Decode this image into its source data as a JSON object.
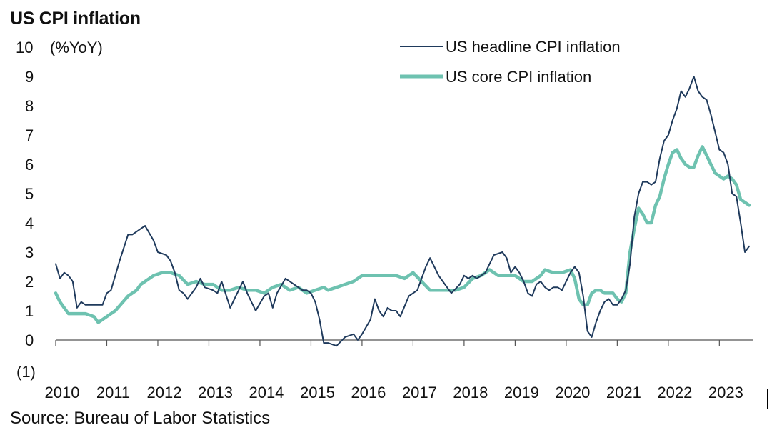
{
  "chart_data": {
    "type": "line",
    "title": "US CPI inflation",
    "ylabel": "(%YoY)",
    "source": "Source: Bureau of Labor Statistics",
    "ylim": [
      -1,
      10
    ],
    "y_ticks": [
      {
        "value": 10,
        "label": "10"
      },
      {
        "value": 9,
        "label": "9"
      },
      {
        "value": 8,
        "label": "8"
      },
      {
        "value": 7,
        "label": "7"
      },
      {
        "value": 6,
        "label": "6"
      },
      {
        "value": 5,
        "label": "5"
      },
      {
        "value": 4,
        "label": "4"
      },
      {
        "value": 3,
        "label": "3"
      },
      {
        "value": 2,
        "label": "2"
      },
      {
        "value": 1,
        "label": "1"
      },
      {
        "value": 0,
        "label": "0"
      },
      {
        "value": -1,
        "label": "(1)"
      }
    ],
    "x_range": [
      "2010-01",
      "2023-09"
    ],
    "x_ticks": [
      "2010",
      "2011",
      "2012",
      "2013",
      "2014",
      "2015",
      "2016",
      "2017",
      "2018",
      "2019",
      "2020",
      "2021",
      "2022",
      "2023"
    ],
    "legend_position": "top-right",
    "grid": false,
    "series": [
      {
        "name": "US headline CPI inflation",
        "color": "#1f3a5c",
        "points": [
          [
            "2010-01",
            2.6
          ],
          [
            "2010-02",
            2.1
          ],
          [
            "2010-03",
            2.3
          ],
          [
            "2010-04",
            2.2
          ],
          [
            "2010-05",
            2.0
          ],
          [
            "2010-06",
            1.1
          ],
          [
            "2010-07",
            1.3
          ],
          [
            "2010-08",
            1.2
          ],
          [
            "2010-10",
            1.2
          ],
          [
            "2010-12",
            1.2
          ],
          [
            "2011-01",
            1.6
          ],
          [
            "2011-02",
            1.7
          ],
          [
            "2011-04",
            2.7
          ],
          [
            "2011-06",
            3.6
          ],
          [
            "2011-07",
            3.6
          ],
          [
            "2011-09",
            3.8
          ],
          [
            "2011-10",
            3.9
          ],
          [
            "2011-12",
            3.4
          ],
          [
            "2012-01",
            3.0
          ],
          [
            "2012-03",
            2.9
          ],
          [
            "2012-04",
            2.7
          ],
          [
            "2012-05",
            2.3
          ],
          [
            "2012-06",
            1.7
          ],
          [
            "2012-07",
            1.6
          ],
          [
            "2012-08",
            1.4
          ],
          [
            "2012-10",
            1.8
          ],
          [
            "2012-11",
            2.1
          ],
          [
            "2012-12",
            1.8
          ],
          [
            "2013-02",
            1.7
          ],
          [
            "2013-03",
            1.6
          ],
          [
            "2013-04",
            2.0
          ],
          [
            "2013-06",
            1.1
          ],
          [
            "2013-07",
            1.4
          ],
          [
            "2013-09",
            2.0
          ],
          [
            "2013-10",
            1.6
          ],
          [
            "2013-12",
            1.0
          ],
          [
            "2014-02",
            1.5
          ],
          [
            "2014-03",
            1.6
          ],
          [
            "2014-04",
            1.1
          ],
          [
            "2014-05",
            1.6
          ],
          [
            "2014-07",
            2.1
          ],
          [
            "2014-08",
            2.0
          ],
          [
            "2014-09",
            1.9
          ],
          [
            "2014-11",
            1.7
          ],
          [
            "2014-12",
            1.7
          ],
          [
            "2015-01",
            1.6
          ],
          [
            "2015-02",
            1.3
          ],
          [
            "2015-03",
            0.7
          ],
          [
            "2015-04",
            -0.1
          ],
          [
            "2015-05",
            -0.1
          ],
          [
            "2015-07",
            -0.2
          ],
          [
            "2015-09",
            0.1
          ],
          [
            "2015-11",
            0.2
          ],
          [
            "2015-12",
            -0.0
          ],
          [
            "2016-01",
            0.2
          ],
          [
            "2016-03",
            0.7
          ],
          [
            "2016-04",
            1.4
          ],
          [
            "2016-05",
            1.0
          ],
          [
            "2016-06",
            0.8
          ],
          [
            "2016-07",
            1.1
          ],
          [
            "2016-08",
            1.0
          ],
          [
            "2016-09",
            1.0
          ],
          [
            "2016-10",
            0.8
          ],
          [
            "2016-12",
            1.5
          ],
          [
            "2017-01",
            1.6
          ],
          [
            "2017-02",
            1.7
          ],
          [
            "2017-04",
            2.5
          ],
          [
            "2017-05",
            2.8
          ],
          [
            "2017-07",
            2.2
          ],
          [
            "2017-08",
            2.0
          ],
          [
            "2017-10",
            1.6
          ],
          [
            "2017-12",
            1.9
          ],
          [
            "2018-01",
            2.2
          ],
          [
            "2018-02",
            2.1
          ],
          [
            "2018-03",
            2.2
          ],
          [
            "2018-04",
            2.1
          ],
          [
            "2018-06",
            2.3
          ],
          [
            "2018-08",
            2.9
          ],
          [
            "2018-10",
            3.0
          ],
          [
            "2018-11",
            2.8
          ],
          [
            "2018-12",
            2.3
          ],
          [
            "2019-01",
            2.5
          ],
          [
            "2019-02",
            2.3
          ],
          [
            "2019-03",
            2.0
          ],
          [
            "2019-04",
            1.6
          ],
          [
            "2019-05",
            1.5
          ],
          [
            "2019-06",
            1.9
          ],
          [
            "2019-07",
            2.0
          ],
          [
            "2019-08",
            1.8
          ],
          [
            "2019-09",
            1.7
          ],
          [
            "2019-10",
            1.8
          ],
          [
            "2019-11",
            1.8
          ],
          [
            "2019-12",
            1.7
          ],
          [
            "2020-02",
            2.3
          ],
          [
            "2020-03",
            2.5
          ],
          [
            "2020-04",
            2.3
          ],
          [
            "2020-05",
            1.5
          ],
          [
            "2020-06",
            0.3
          ],
          [
            "2020-07",
            0.1
          ],
          [
            "2020-08",
            0.6
          ],
          [
            "2020-09",
            1.0
          ],
          [
            "2020-10",
            1.3
          ],
          [
            "2020-11",
            1.4
          ],
          [
            "2020-12",
            1.2
          ],
          [
            "2021-01",
            1.2
          ],
          [
            "2021-02",
            1.4
          ],
          [
            "2021-03",
            1.7
          ],
          [
            "2021-04",
            2.6
          ],
          [
            "2021-05",
            4.2
          ],
          [
            "2021-06",
            5.0
          ],
          [
            "2021-07",
            5.4
          ],
          [
            "2021-08",
            5.4
          ],
          [
            "2021-09",
            5.3
          ],
          [
            "2021-10",
            5.4
          ],
          [
            "2021-11",
            6.2
          ],
          [
            "2021-12",
            6.8
          ],
          [
            "2022-01",
            7.0
          ],
          [
            "2022-02",
            7.5
          ],
          [
            "2022-03",
            7.9
          ],
          [
            "2022-04",
            8.5
          ],
          [
            "2022-05",
            8.3
          ],
          [
            "2022-06",
            8.6
          ],
          [
            "2022-07",
            9.0
          ],
          [
            "2022-08",
            8.5
          ],
          [
            "2022-09",
            8.3
          ],
          [
            "2022-10",
            8.2
          ],
          [
            "2022-11",
            7.7
          ],
          [
            "2022-12",
            7.1
          ],
          [
            "2023-01",
            6.5
          ],
          [
            "2023-02",
            6.4
          ],
          [
            "2023-03",
            6.0
          ],
          [
            "2023-04",
            5.0
          ],
          [
            "2023-05",
            4.9
          ],
          [
            "2023-06",
            4.0
          ],
          [
            "2023-07",
            3.0
          ],
          [
            "2023-08",
            3.2
          ]
        ]
      },
      {
        "name": "US core CPI inflation",
        "color": "#6ec2b0",
        "points": [
          [
            "2010-01",
            1.6
          ],
          [
            "2010-02",
            1.3
          ],
          [
            "2010-03",
            1.1
          ],
          [
            "2010-04",
            0.9
          ],
          [
            "2010-06",
            0.9
          ],
          [
            "2010-08",
            0.9
          ],
          [
            "2010-10",
            0.8
          ],
          [
            "2010-11",
            0.6
          ],
          [
            "2011-01",
            0.8
          ],
          [
            "2011-03",
            1.0
          ],
          [
            "2011-06",
            1.5
          ],
          [
            "2011-08",
            1.7
          ],
          [
            "2011-09",
            1.9
          ],
          [
            "2011-10",
            2.0
          ],
          [
            "2011-12",
            2.2
          ],
          [
            "2012-02",
            2.3
          ],
          [
            "2012-04",
            2.3
          ],
          [
            "2012-06",
            2.2
          ],
          [
            "2012-08",
            1.9
          ],
          [
            "2012-10",
            2.0
          ],
          [
            "2012-12",
            1.9
          ],
          [
            "2013-02",
            1.9
          ],
          [
            "2013-04",
            1.7
          ],
          [
            "2013-06",
            1.7
          ],
          [
            "2013-08",
            1.8
          ],
          [
            "2013-10",
            1.7
          ],
          [
            "2013-12",
            1.7
          ],
          [
            "2014-02",
            1.6
          ],
          [
            "2014-04",
            1.8
          ],
          [
            "2014-06",
            1.9
          ],
          [
            "2014-08",
            1.7
          ],
          [
            "2014-10",
            1.8
          ],
          [
            "2014-12",
            1.6
          ],
          [
            "2015-02",
            1.7
          ],
          [
            "2015-04",
            1.8
          ],
          [
            "2015-05",
            1.7
          ],
          [
            "2015-07",
            1.8
          ],
          [
            "2015-09",
            1.9
          ],
          [
            "2015-11",
            2.0
          ],
          [
            "2016-01",
            2.2
          ],
          [
            "2016-03",
            2.2
          ],
          [
            "2016-05",
            2.2
          ],
          [
            "2016-07",
            2.2
          ],
          [
            "2016-09",
            2.2
          ],
          [
            "2016-11",
            2.1
          ],
          [
            "2017-01",
            2.3
          ],
          [
            "2017-03",
            2.0
          ],
          [
            "2017-05",
            1.7
          ],
          [
            "2017-07",
            1.7
          ],
          [
            "2017-09",
            1.7
          ],
          [
            "2017-11",
            1.7
          ],
          [
            "2018-01",
            1.8
          ],
          [
            "2018-03",
            2.1
          ],
          [
            "2018-05",
            2.2
          ],
          [
            "2018-07",
            2.4
          ],
          [
            "2018-09",
            2.2
          ],
          [
            "2018-11",
            2.2
          ],
          [
            "2019-01",
            2.2
          ],
          [
            "2019-03",
            2.0
          ],
          [
            "2019-05",
            2.0
          ],
          [
            "2019-07",
            2.2
          ],
          [
            "2019-08",
            2.4
          ],
          [
            "2019-10",
            2.3
          ],
          [
            "2019-12",
            2.3
          ],
          [
            "2020-02",
            2.4
          ],
          [
            "2020-03",
            2.1
          ],
          [
            "2020-04",
            1.4
          ],
          [
            "2020-05",
            1.2
          ],
          [
            "2020-06",
            1.2
          ],
          [
            "2020-07",
            1.6
          ],
          [
            "2020-08",
            1.7
          ],
          [
            "2020-09",
            1.7
          ],
          [
            "2020-10",
            1.6
          ],
          [
            "2020-11",
            1.6
          ],
          [
            "2020-12",
            1.6
          ],
          [
            "2021-01",
            1.4
          ],
          [
            "2021-02",
            1.3
          ],
          [
            "2021-03",
            1.6
          ],
          [
            "2021-04",
            3.0
          ],
          [
            "2021-05",
            3.8
          ],
          [
            "2021-06",
            4.5
          ],
          [
            "2021-07",
            4.3
          ],
          [
            "2021-08",
            4.0
          ],
          [
            "2021-09",
            4.0
          ],
          [
            "2021-10",
            4.6
          ],
          [
            "2021-11",
            4.9
          ],
          [
            "2021-12",
            5.5
          ],
          [
            "2022-01",
            6.0
          ],
          [
            "2022-02",
            6.4
          ],
          [
            "2022-03",
            6.5
          ],
          [
            "2022-04",
            6.2
          ],
          [
            "2022-05",
            6.0
          ],
          [
            "2022-06",
            5.9
          ],
          [
            "2022-07",
            5.9
          ],
          [
            "2022-08",
            6.3
          ],
          [
            "2022-09",
            6.6
          ],
          [
            "2022-10",
            6.3
          ],
          [
            "2022-11",
            6.0
          ],
          [
            "2022-12",
            5.7
          ],
          [
            "2023-01",
            5.6
          ],
          [
            "2023-02",
            5.5
          ],
          [
            "2023-03",
            5.6
          ],
          [
            "2023-04",
            5.5
          ],
          [
            "2023-05",
            5.3
          ],
          [
            "2023-06",
            4.8
          ],
          [
            "2023-07",
            4.7
          ],
          [
            "2023-08",
            4.6
          ]
        ]
      }
    ]
  }
}
